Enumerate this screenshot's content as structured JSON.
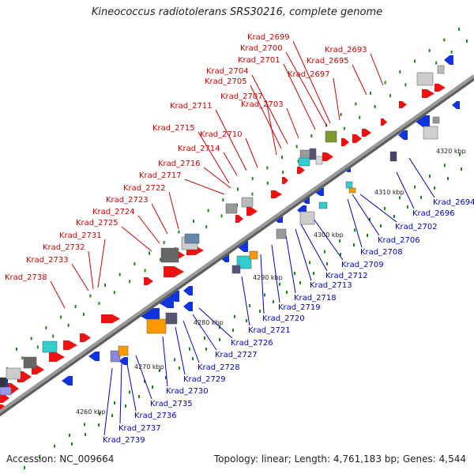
{
  "title": "Kineococcus radiotolerans SRS30216, complete genome",
  "footer": {
    "accession": "Accession: NC_009664",
    "summary": "Topology: linear; Length: 4,761,183 bp; Genes: 4,544"
  },
  "colors": {
    "forward_label": "#d00000",
    "reverse_label": "#0000cc",
    "axis": "#9a9a9a",
    "tick": "#1a8a1a"
  },
  "ruler": [
    "4260 kbp",
    "4270 kbp",
    "4280 kbp",
    "4290 kbp",
    "4300 kbp",
    "4310 kbp",
    "4320 kbp"
  ],
  "forward_genes": [
    "Krad_2693",
    "Krad_2695",
    "Krad_2697",
    "Krad_2699",
    "Krad_2700",
    "Krad_2701",
    "Krad_2703",
    "Krad_2704",
    "Krad_2705",
    "Krad_2707",
    "Krad_2710",
    "Krad_2711",
    "Krad_2714",
    "Krad_2715",
    "Krad_2716",
    "Krad_2717",
    "Krad_2722",
    "Krad_2723",
    "Krad_2724",
    "Krad_2725",
    "Krad_2731",
    "Krad_2732",
    "Krad_2733",
    "Krad_2738"
  ],
  "reverse_genes": [
    "Krad_2694",
    "Krad_2696",
    "Krad_2702",
    "Krad_2706",
    "Krad_2708",
    "Krad_2709",
    "Krad_2712",
    "Krad_2713",
    "Krad_2718",
    "Krad_2719",
    "Krad_2720",
    "Krad_2721",
    "Krad_2726",
    "Krad_2727",
    "Krad_2728",
    "Krad_2729",
    "Krad_2730",
    "Krad_2735",
    "Krad_2736",
    "Krad_2737",
    "Krad_2739"
  ]
}
